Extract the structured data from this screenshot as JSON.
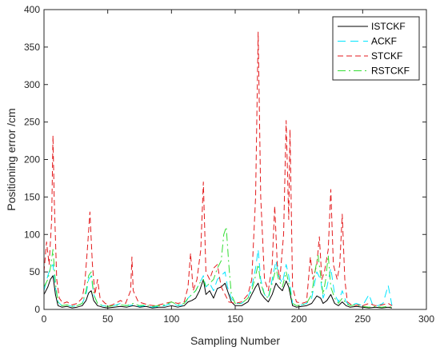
{
  "chart_data": {
    "type": "line",
    "title": "",
    "xlabel": "Sampling Number",
    "ylabel": "Positioning error /cm",
    "xlim": [
      0,
      300
    ],
    "ylim": [
      0,
      400
    ],
    "xticks": [
      0,
      50,
      100,
      150,
      200,
      250,
      300
    ],
    "yticks": [
      0,
      50,
      100,
      150,
      200,
      250,
      300,
      350,
      400
    ],
    "grid": false,
    "legend_position": "top-right",
    "series": [
      {
        "name": "ISTCKF",
        "color": "#000000",
        "dash": "solid",
        "points": [
          [
            0,
            20
          ],
          [
            3,
            30
          ],
          [
            5,
            40
          ],
          [
            7,
            45
          ],
          [
            9,
            20
          ],
          [
            11,
            5
          ],
          [
            14,
            3
          ],
          [
            18,
            4
          ],
          [
            22,
            2
          ],
          [
            26,
            3
          ],
          [
            30,
            5
          ],
          [
            33,
            12
          ],
          [
            35,
            22
          ],
          [
            37,
            25
          ],
          [
            39,
            12
          ],
          [
            42,
            5
          ],
          [
            46,
            3
          ],
          [
            50,
            2
          ],
          [
            55,
            3
          ],
          [
            60,
            4
          ],
          [
            65,
            3
          ],
          [
            70,
            5
          ],
          [
            75,
            3
          ],
          [
            80,
            4
          ],
          [
            85,
            2
          ],
          [
            90,
            3
          ],
          [
            95,
            3
          ],
          [
            100,
            5
          ],
          [
            105,
            3
          ],
          [
            110,
            5
          ],
          [
            113,
            10
          ],
          [
            116,
            12
          ],
          [
            119,
            15
          ],
          [
            122,
            25
          ],
          [
            125,
            40
          ],
          [
            127,
            20
          ],
          [
            130,
            25
          ],
          [
            133,
            15
          ],
          [
            136,
            28
          ],
          [
            139,
            30
          ],
          [
            142,
            35
          ],
          [
            144,
            25
          ],
          [
            147,
            10
          ],
          [
            150,
            5
          ],
          [
            155,
            5
          ],
          [
            160,
            10
          ],
          [
            163,
            20
          ],
          [
            166,
            30
          ],
          [
            168,
            35
          ],
          [
            170,
            22
          ],
          [
            173,
            15
          ],
          [
            176,
            10
          ],
          [
            179,
            20
          ],
          [
            182,
            35
          ],
          [
            184,
            30
          ],
          [
            187,
            25
          ],
          [
            190,
            38
          ],
          [
            192,
            30
          ],
          [
            195,
            5
          ],
          [
            198,
            3
          ],
          [
            202,
            4
          ],
          [
            206,
            5
          ],
          [
            210,
            8
          ],
          [
            214,
            18
          ],
          [
            217,
            15
          ],
          [
            219,
            8
          ],
          [
            222,
            12
          ],
          [
            225,
            20
          ],
          [
            228,
            8
          ],
          [
            231,
            5
          ],
          [
            234,
            10
          ],
          [
            237,
            5
          ],
          [
            240,
            3
          ],
          [
            245,
            4
          ],
          [
            250,
            3
          ],
          [
            255,
            2
          ],
          [
            260,
            3
          ],
          [
            265,
            2
          ],
          [
            270,
            3
          ],
          [
            273,
            2
          ]
        ]
      },
      {
        "name": "ACKF",
        "color": "#00e5ff",
        "dash": "10,6",
        "points": [
          [
            0,
            25
          ],
          [
            3,
            45
          ],
          [
            5,
            55
          ],
          [
            7,
            60
          ],
          [
            9,
            30
          ],
          [
            11,
            10
          ],
          [
            14,
            5
          ],
          [
            18,
            6
          ],
          [
            22,
            4
          ],
          [
            26,
            5
          ],
          [
            30,
            8
          ],
          [
            33,
            20
          ],
          [
            35,
            40
          ],
          [
            37,
            45
          ],
          [
            39,
            20
          ],
          [
            42,
            8
          ],
          [
            46,
            5
          ],
          [
            50,
            4
          ],
          [
            55,
            5
          ],
          [
            60,
            8
          ],
          [
            65,
            5
          ],
          [
            70,
            6
          ],
          [
            75,
            4
          ],
          [
            80,
            5
          ],
          [
            85,
            3
          ],
          [
            90,
            4
          ],
          [
            95,
            5
          ],
          [
            100,
            8
          ],
          [
            105,
            5
          ],
          [
            110,
            6
          ],
          [
            113,
            15
          ],
          [
            116,
            20
          ],
          [
            119,
            25
          ],
          [
            122,
            35
          ],
          [
            125,
            45
          ],
          [
            127,
            30
          ],
          [
            130,
            35
          ],
          [
            133,
            25
          ],
          [
            136,
            40
          ],
          [
            139,
            45
          ],
          [
            142,
            50
          ],
          [
            144,
            30
          ],
          [
            147,
            15
          ],
          [
            150,
            8
          ],
          [
            155,
            8
          ],
          [
            160,
            15
          ],
          [
            163,
            30
          ],
          [
            166,
            55
          ],
          [
            168,
            80
          ],
          [
            170,
            40
          ],
          [
            173,
            20
          ],
          [
            176,
            15
          ],
          [
            179,
            40
          ],
          [
            182,
            65
          ],
          [
            184,
            45
          ],
          [
            187,
            35
          ],
          [
            190,
            60
          ],
          [
            192,
            45
          ],
          [
            195,
            8
          ],
          [
            198,
            5
          ],
          [
            202,
            6
          ],
          [
            206,
            8
          ],
          [
            210,
            15
          ],
          [
            214,
            50
          ],
          [
            217,
            40
          ],
          [
            219,
            15
          ],
          [
            222,
            30
          ],
          [
            225,
            55
          ],
          [
            228,
            20
          ],
          [
            231,
            10
          ],
          [
            234,
            25
          ],
          [
            237,
            10
          ],
          [
            240,
            5
          ],
          [
            245,
            8
          ],
          [
            250,
            5
          ],
          [
            255,
            20
          ],
          [
            258,
            5
          ],
          [
            262,
            5
          ],
          [
            266,
            8
          ],
          [
            270,
            32
          ],
          [
            273,
            5
          ]
        ]
      },
      {
        "name": "STCKF",
        "color": "#e31a1c",
        "dash": "7,4",
        "points": [
          [
            0,
            50
          ],
          [
            2,
            90
          ],
          [
            4,
            60
          ],
          [
            6,
            120
          ],
          [
            7,
            232
          ],
          [
            8,
            150
          ],
          [
            10,
            40
          ],
          [
            12,
            15
          ],
          [
            15,
            8
          ],
          [
            18,
            10
          ],
          [
            22,
            6
          ],
          [
            26,
            8
          ],
          [
            30,
            15
          ],
          [
            32,
            35
          ],
          [
            34,
            80
          ],
          [
            36,
            130
          ],
          [
            38,
            60
          ],
          [
            40,
            20
          ],
          [
            42,
            40
          ],
          [
            44,
            15
          ],
          [
            48,
            8
          ],
          [
            52,
            5
          ],
          [
            56,
            8
          ],
          [
            60,
            12
          ],
          [
            64,
            8
          ],
          [
            68,
            25
          ],
          [
            69,
            70
          ],
          [
            70,
            25
          ],
          [
            74,
            10
          ],
          [
            78,
            8
          ],
          [
            82,
            6
          ],
          [
            86,
            5
          ],
          [
            90,
            6
          ],
          [
            95,
            8
          ],
          [
            100,
            10
          ],
          [
            105,
            8
          ],
          [
            110,
            10
          ],
          [
            113,
            30
          ],
          [
            115,
            75
          ],
          [
            117,
            25
          ],
          [
            120,
            40
          ],
          [
            123,
            80
          ],
          [
            125,
            170
          ],
          [
            127,
            50
          ],
          [
            130,
            40
          ],
          [
            133,
            55
          ],
          [
            136,
            60
          ],
          [
            139,
            30
          ],
          [
            142,
            20
          ],
          [
            145,
            10
          ],
          [
            150,
            8
          ],
          [
            155,
            10
          ],
          [
            160,
            20
          ],
          [
            163,
            40
          ],
          [
            166,
            150
          ],
          [
            168,
            370
          ],
          [
            170,
            150
          ],
          [
            173,
            40
          ],
          [
            176,
            25
          ],
          [
            179,
            60
          ],
          [
            181,
            138
          ],
          [
            183,
            60
          ],
          [
            185,
            40
          ],
          [
            188,
            100
          ],
          [
            190,
            252
          ],
          [
            192,
            120
          ],
          [
            193,
            240
          ],
          [
            195,
            30
          ],
          [
            198,
            10
          ],
          [
            202,
            8
          ],
          [
            206,
            10
          ],
          [
            209,
            70
          ],
          [
            211,
            40
          ],
          [
            214,
            60
          ],
          [
            216,
            97
          ],
          [
            218,
            40
          ],
          [
            220,
            50
          ],
          [
            223,
            80
          ],
          [
            225,
            160
          ],
          [
            227,
            60
          ],
          [
            230,
            40
          ],
          [
            232,
            60
          ],
          [
            234,
            127
          ],
          [
            236,
            40
          ],
          [
            238,
            10
          ],
          [
            242,
            5
          ],
          [
            246,
            6
          ],
          [
            250,
            5
          ],
          [
            255,
            8
          ],
          [
            260,
            5
          ],
          [
            265,
            6
          ],
          [
            270,
            8
          ],
          [
            273,
            5
          ]
        ]
      },
      {
        "name": "RSTCKF",
        "color": "#33dd33",
        "dash": "10,4,2,4",
        "points": [
          [
            0,
            30
          ],
          [
            3,
            40
          ],
          [
            5,
            55
          ],
          [
            7,
            80
          ],
          [
            9,
            35
          ],
          [
            11,
            10
          ],
          [
            14,
            5
          ],
          [
            18,
            6
          ],
          [
            22,
            4
          ],
          [
            26,
            5
          ],
          [
            30,
            8
          ],
          [
            33,
            25
          ],
          [
            35,
            45
          ],
          [
            37,
            50
          ],
          [
            39,
            20
          ],
          [
            42,
            8
          ],
          [
            46,
            5
          ],
          [
            50,
            4
          ],
          [
            55,
            5
          ],
          [
            60,
            6
          ],
          [
            65,
            5
          ],
          [
            70,
            8
          ],
          [
            75,
            5
          ],
          [
            80,
            6
          ],
          [
            85,
            4
          ],
          [
            90,
            5
          ],
          [
            95,
            6
          ],
          [
            100,
            10
          ],
          [
            105,
            6
          ],
          [
            110,
            8
          ],
          [
            113,
            15
          ],
          [
            116,
            20
          ],
          [
            119,
            25
          ],
          [
            122,
            35
          ],
          [
            125,
            40
          ],
          [
            127,
            30
          ],
          [
            130,
            35
          ],
          [
            133,
            40
          ],
          [
            136,
            55
          ],
          [
            139,
            65
          ],
          [
            141,
            100
          ],
          [
            143,
            110
          ],
          [
            145,
            60
          ],
          [
            147,
            20
          ],
          [
            150,
            8
          ],
          [
            155,
            8
          ],
          [
            160,
            15
          ],
          [
            163,
            25
          ],
          [
            166,
            45
          ],
          [
            168,
            60
          ],
          [
            170,
            35
          ],
          [
            173,
            20
          ],
          [
            176,
            15
          ],
          [
            179,
            35
          ],
          [
            182,
            55
          ],
          [
            184,
            40
          ],
          [
            187,
            30
          ],
          [
            190,
            50
          ],
          [
            192,
            35
          ],
          [
            195,
            8
          ],
          [
            198,
            5
          ],
          [
            202,
            6
          ],
          [
            206,
            8
          ],
          [
            210,
            20
          ],
          [
            213,
            55
          ],
          [
            215,
            72
          ],
          [
            217,
            45
          ],
          [
            219,
            20
          ],
          [
            221,
            40
          ],
          [
            223,
            72
          ],
          [
            225,
            30
          ],
          [
            228,
            15
          ],
          [
            231,
            8
          ],
          [
            234,
            15
          ],
          [
            237,
            8
          ],
          [
            240,
            5
          ],
          [
            245,
            6
          ],
          [
            250,
            4
          ],
          [
            255,
            3
          ],
          [
            260,
            4
          ],
          [
            265,
            3
          ],
          [
            270,
            4
          ],
          [
            273,
            3
          ]
        ]
      }
    ]
  }
}
